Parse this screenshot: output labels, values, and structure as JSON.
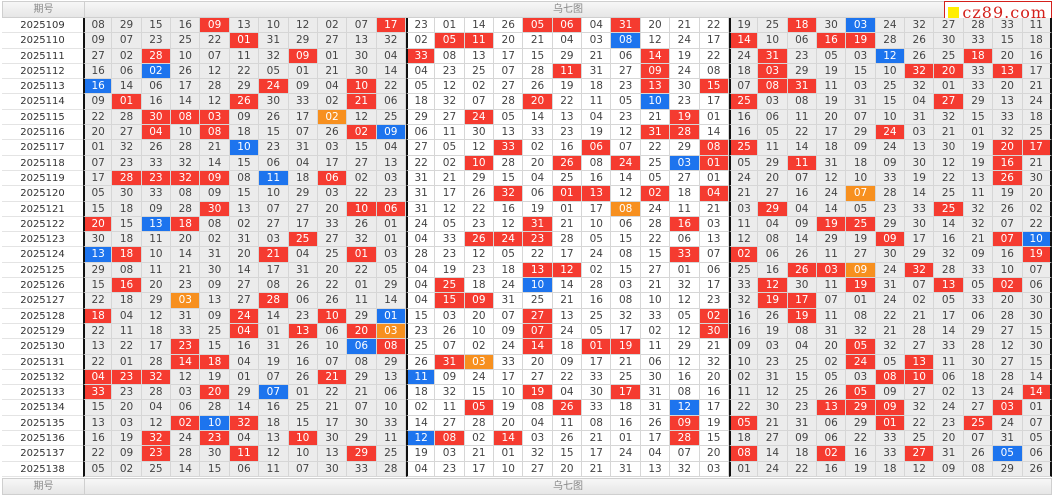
{
  "header": {
    "period_label": "期号",
    "title": "乌七图"
  },
  "footer": {
    "period_label": "期号",
    "title": "乌七图"
  },
  "watermark": "cz89.com",
  "colors": {
    "red": "#f53b30",
    "blue": "#1d74ee",
    "orange": "#f7901f"
  },
  "legend_codes": {
    "r": "red-highlight",
    "b": "blue-highlight",
    "o": "orange-highlight"
  },
  "rows": [
    {
      "period": "2025109",
      "cells": "08 29 15 16 09r 13 10 12 02 07 17r 23 01 14 26 05r 06r 04 31r 20 21 22 19 25 18r 30 03b 24 32 27 28 33 11"
    },
    {
      "period": "2025110",
      "cells": "09 07 23 25 22 01r 31 29 27 13 32 02 05r 11r 20 21 04 03 08b 12 24 17 14r 10 06 16r 19r 28 26 30 33 15 18"
    },
    {
      "period": "2025111",
      "cells": "27 02 28r 10 07 11 32 09r 01 30 04 33r 08 13 17 15 29 21 06 14r 19 22 24 31r 23 05 03 12b 26 25 18r 20 16"
    },
    {
      "period": "2025112",
      "cells": "16 06 02b 26 12 22 05 01 21 30 14 04 23 25 07 28 11r 31 27 09r 24 08 18 03r 29 19 15 10 32r 20r 33 13r 17"
    },
    {
      "period": "2025113",
      "cells": "16b 14 06 17 28 29 24r 09 04 10r 22 05 12 02 27 26 19 18 23 13r 30 15r 07 08r 31r 11 03 25 32 01 33 20 21"
    },
    {
      "period": "2025114",
      "cells": "09 01r 16 14 12 26r 30 33 02 21r 06 18 32 07 28 20r 22 11 05 10b 23 17 25r 03 08 19 31 15 04 27r 29 13 24"
    },
    {
      "period": "2025115",
      "cells": "22 28 30r 08r 03r 09 26 17 02o 12 25 29 27 24r 05 14 13 04 23 21 19r 01 16 06 11 20 07 10 31 32 15 33 18"
    },
    {
      "period": "2025116",
      "cells": "20 27 04r 10 08r 18 15 07 26 02r 09b 06 11 30 13 33 23 19 12 31r 28r 14 16 05 22 17 29 24r 03 21 01 32 25"
    },
    {
      "period": "2025117",
      "cells": "01 32 26 28 21 10b 23 31 03 15 04 27 05 12 33r 02 16 06r 07 22 29 08r 25r 11 14 18 09 24 13 30 19 20r 17r"
    },
    {
      "period": "2025118",
      "cells": "07 23 33 32 14 15 06 04 17 27 13 22 02 10r 28 20 26r 08 24r 25 03b 01r 05 29 11r 31 18 09 30 12 19 16r 21"
    },
    {
      "period": "2025119",
      "cells": "17 28r 23r 32r 09r 08 11b 18 06r 02 03 31 21 29 15 04 25 16 14 05 27 01 24 20 07 12 10 33 19 22 13 26r 30"
    },
    {
      "period": "2025120",
      "cells": "05 30 33 08 09 15 10 29 03 22 23 31 17 26 32r 06 01r 13r 12 02r 18 04r 21 27 16 24 07o 28 14 25 11 19 20"
    },
    {
      "period": "2025121",
      "cells": "15 18 09 28 30r 13 07 27 20 10r 06r 31 12 22 16 19 01 17 08o 24 11 21 03 29r 04 14 05 23 33 25r 32 26 02"
    },
    {
      "period": "2025122",
      "cells": "20r 15 13b 18r 08 02 27 17 33 26 01 24 05 23 12 31r 21 10 06 28 16r 03 11 04 09 19r 25r 29 30 14 32 07 22"
    },
    {
      "period": "2025123",
      "cells": "30 18 11 20 02 31 03 25r 27 32 01 04 33 26r 24r 23r 28 05 15 22 06 13 12 08 14 29 19 09r 17 16 21 07r 10b"
    },
    {
      "period": "2025124",
      "cells": "13b 18r 10 14 31 20 21r 04 25 01r 03 28 23 12 05 22 17 24 08 15 33r 07 02r 06 26 11 27 30 29 32 09 16 19r"
    },
    {
      "period": "2025125",
      "cells": "29 08 11 21 30 14 17 31 20 22 05 04 19 23 18 13r 12r 02 15 27 01 06 25 16 26r 03r 09o 24 32r 28 33 10 07"
    },
    {
      "period": "2025126",
      "cells": "15 16r 20 23 09 27 08 26 22 01 29 04 25r 18 24 10b 14 28 03 21 32 17 33 12r 30 11 19r 31 07 13r 05 02r 06"
    },
    {
      "period": "2025127",
      "cells": "22 18 29 03o 13 27 28r 06 26 11 14 04 15r 09r 31 25 21 16 08 10 12 23 32 19r 17r 07 01 24 02 05 33 20 30"
    },
    {
      "period": "2025128",
      "cells": "18r 04 12 31 09 24r 14 23 10r 29 01b 15 03 20 07 27r 13 25 32 33 05 02r 16 26 19r 11 08 22 21 17 06 28 30"
    },
    {
      "period": "2025129",
      "cells": "22 11 18 33 25 04r 01 13r 06 20r 03o 23 26 10 09 07r 24 05 17 02 12 30r 16 19 08 31 32 21 28 14 29 27 15"
    },
    {
      "period": "2025130",
      "cells": "13 22 17 23r 15 16 31 26 10 06b 08r 25 07 02 24 14r 18 01r 19r 11 29 21 09 03 04 20 05r 32 27 33 28 12 30"
    },
    {
      "period": "2025131",
      "cells": "22 01 28 14r 18r 04 19 16 07 08 29 26 31r 03o 33 20 09 17 21 06 12 32 10 23 25 02 24r 05 13r 11 30 27 15"
    },
    {
      "period": "2025132",
      "cells": "04r 23r 32r 12 19 01 07 26 21r 29 13 11b 09 24 17 27 22 33 25 30 16 20 02 31 15 05 03 08r 10r 06 18 28 14"
    },
    {
      "period": "2025133",
      "cells": "33r 23 28 03 20r 29 07b 01 22 21 06 18 32 15 10 19r 04 30 17r 31 08 16 11 12 25 26 05r 09 27 02 13 24 14r"
    },
    {
      "period": "2025134",
      "cells": "15 20 04 06 28 14 16 25 21 07 10 02 11 05r 19 08 26r 33 18 31 12b 17 22 30 23 13r 29r 09r 32 24 27 03r 01"
    },
    {
      "period": "2025135",
      "cells": "13 03 12 02r 10b 32r 18 15 17 30 33 14 27 28 20 04 11 08 16 26 09r 19 05r 21 31 06 29 01r 22 23 25r 24 07"
    },
    {
      "period": "2025136",
      "cells": "16 19 32r 24 23r 04 13 10r 30 29 11 12b 08r 02 14r 03 26 21 01 17 28r 15 18 27 09 06 22 33 25 20 07 31 05"
    },
    {
      "period": "2025137",
      "cells": "22 09 23r 28 30 11r 12 10 13 29r 25 19 03 21 01 32 15 17 24 04 07 20 08r 14 18 02r 16 33 27r 31 26 05b 06"
    },
    {
      "period": "2025138",
      "cells": "05 02 25 14 15 06 11 07 30 33 28 04 23 17 10 27 20 21 31 13 32 03 01 24 22 16 19 18 12 09 08 29 26"
    }
  ]
}
